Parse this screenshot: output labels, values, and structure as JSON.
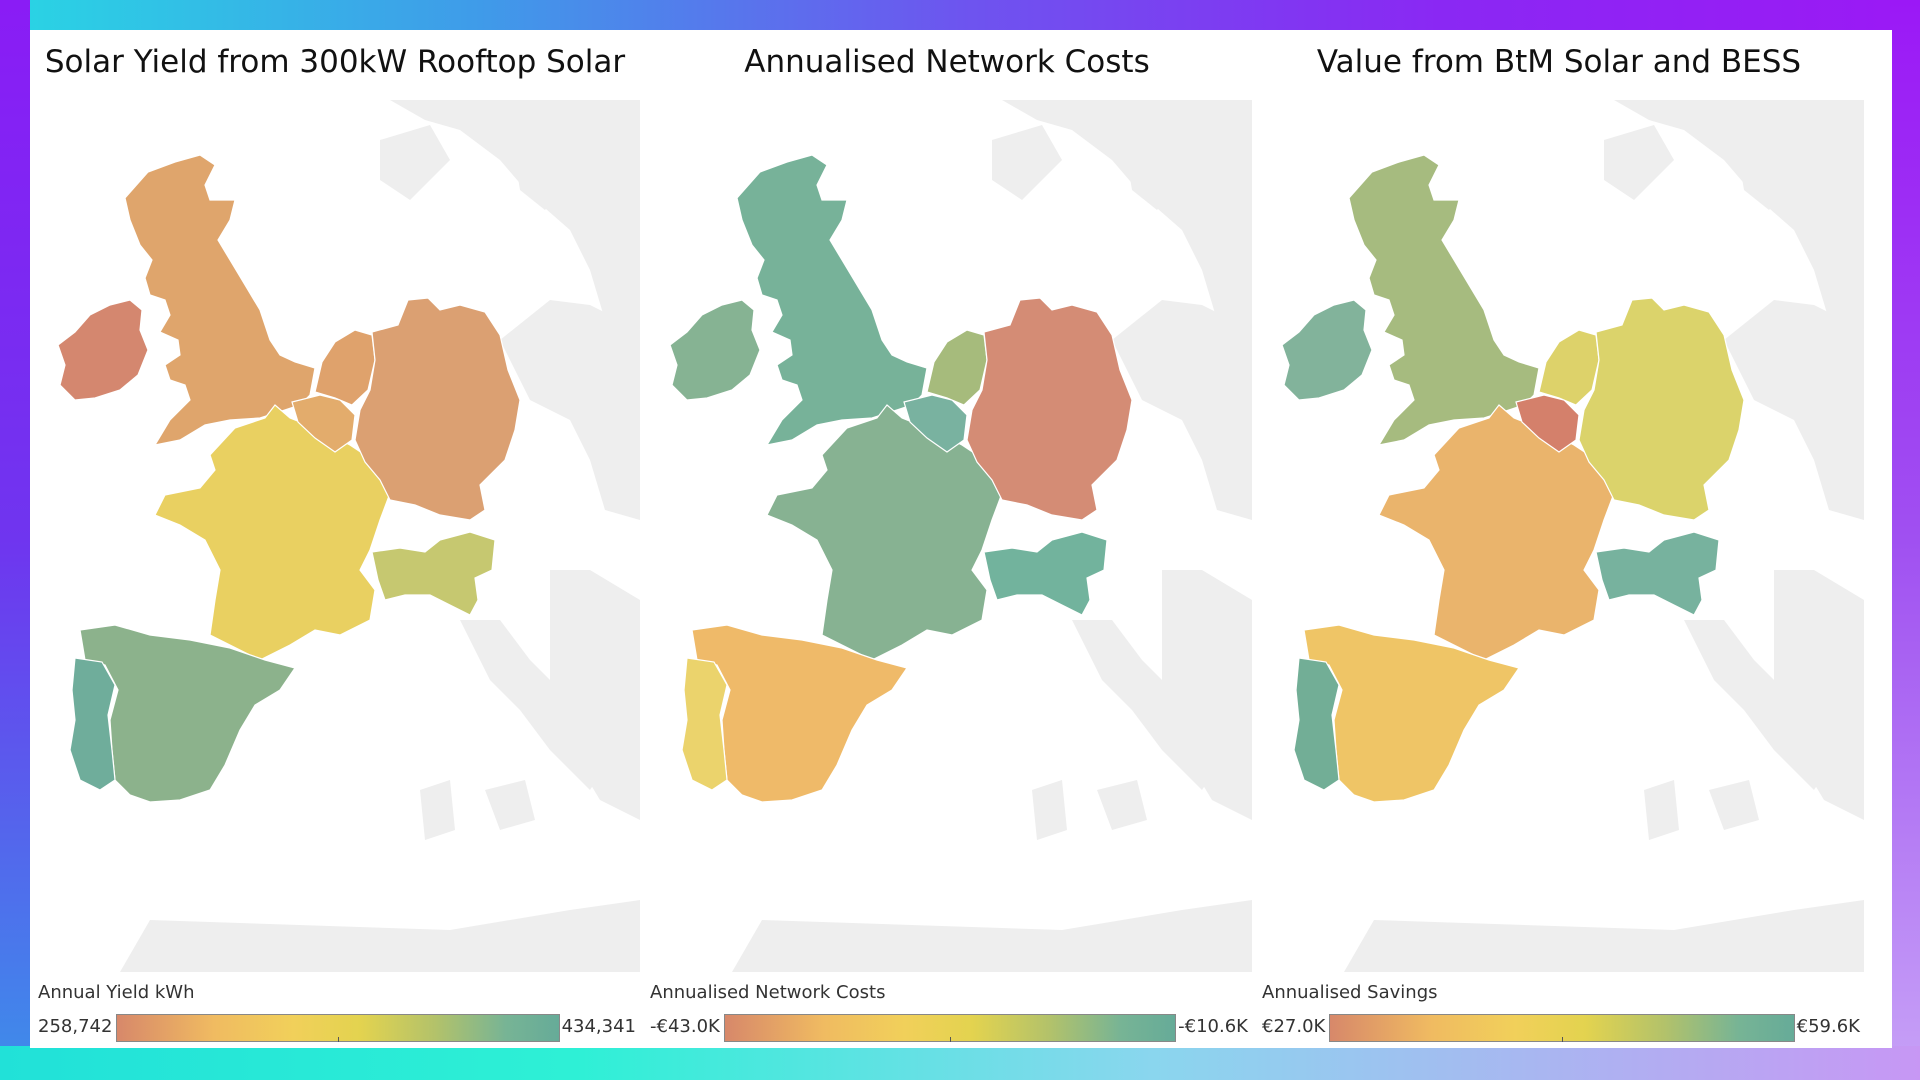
{
  "panels": [
    {
      "id": "solar-yield",
      "title": "Solar Yield from 300kW Rooftop Solar",
      "legend": {
        "title": "Annual Yield kWh",
        "min": "258,742",
        "max": "434,341"
      },
      "colors": {
        "ireland": "#d4876f",
        "uk": "#dfa56c",
        "netherlands": "#dfa26c",
        "belgium": "#e3ac6c",
        "germany": "#dba072",
        "france": "#e9d061",
        "italy": "#c6c870",
        "spain": "#8cb28c",
        "portugal": "#6fad9b"
      }
    },
    {
      "id": "network-costs",
      "title": "Annualised Network Costs",
      "legend": {
        "title": "Annualised Network Costs",
        "min": "-€43.0K",
        "max": "-€10.6K"
      },
      "colors": {
        "ireland": "#86b393",
        "uk": "#77b299",
        "netherlands": "#a6bb7c",
        "belgium": "#79b2a0",
        "germany": "#d48c75",
        "france": "#87b292",
        "italy": "#72b39d",
        "spain": "#efba69",
        "portugal": "#ebd36c"
      }
    },
    {
      "id": "btm-value",
      "title": "Value from BtM Solar and BESS",
      "legend": {
        "title": "Annualised Savings",
        "min": "€27.0K",
        "max": "€59.6K"
      },
      "colors": {
        "ireland": "#82b39b",
        "uk": "#a6bb7f",
        "netherlands": "#ddd26a",
        "belgium": "#d4806b",
        "germany": "#dbd36b",
        "france": "#eab46c",
        "italy": "#77b29e",
        "spain": "#efc566",
        "portugal": "#72ae96"
      }
    }
  ]
}
